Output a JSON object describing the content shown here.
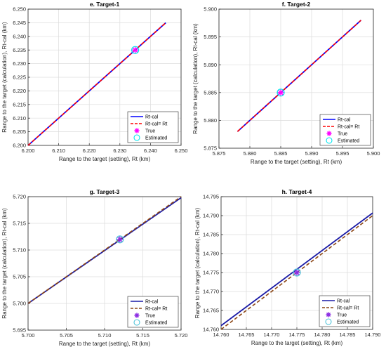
{
  "chart_data": [
    {
      "type": "line",
      "title": "e. Target-1",
      "xlabel": "Range to the target (setting), Rt (km)",
      "ylabel": "Range to the target (calculation), Rt-cal (km)",
      "xlim": [
        6.2,
        6.25
      ],
      "ylim": [
        6.2,
        6.25
      ],
      "xticks": [
        "6.200",
        "6.210",
        "6.220",
        "6.230",
        "6.240",
        "6.250"
      ],
      "yticks": [
        "6.200",
        "6.205",
        "6.210",
        "6.215",
        "6.220",
        "6.225",
        "6.230",
        "6.235",
        "6.240",
        "6.245",
        "6.250"
      ],
      "grid": true,
      "legend_position": "bottom-right",
      "series": [
        {
          "name": "Rt-cal",
          "style": "solid",
          "color": "#0000ff",
          "x": [
            6.2,
            6.245
          ],
          "y": [
            6.2,
            6.245
          ]
        },
        {
          "name": "Rt-cal= Rt",
          "style": "dashed",
          "color": "#ff0000",
          "x": [
            6.2,
            6.245
          ],
          "y": [
            6.2,
            6.245
          ]
        }
      ],
      "points": [
        {
          "name": "True",
          "marker": "asterisk",
          "color": "#ff00ff",
          "x": 6.235,
          "y": 6.235
        },
        {
          "name": "Estimated",
          "marker": "circle",
          "color": "#00e5ee",
          "x": 6.235,
          "y": 6.235
        }
      ]
    },
    {
      "type": "line",
      "title": "f. Target-2",
      "xlabel": "Range to the target (setting), Rt (km)",
      "ylabel": "Range to the target (calculation), Rt-cal (km)",
      "xlim": [
        5.875,
        5.9
      ],
      "ylim": [
        5.875,
        5.9
      ],
      "xticks": [
        "5.875",
        "5.880",
        "5.885",
        "5.890",
        "5.895",
        "5.900"
      ],
      "yticks": [
        "5.875",
        "5.880",
        "5.885",
        "5.890",
        "5.895",
        "5.900"
      ],
      "grid": true,
      "legend_position": "bottom-right",
      "series": [
        {
          "name": "Rt-cal",
          "style": "solid",
          "color": "#0000ff",
          "x": [
            5.878,
            5.898
          ],
          "y": [
            5.878,
            5.898
          ]
        },
        {
          "name": "Rt-cal= Rt",
          "style": "dashed",
          "color": "#ff0000",
          "x": [
            5.878,
            5.898
          ],
          "y": [
            5.878,
            5.898
          ]
        }
      ],
      "points": [
        {
          "name": "True",
          "marker": "asterisk",
          "color": "#ff00ff",
          "x": 5.885,
          "y": 5.885
        },
        {
          "name": "Estimated",
          "marker": "circle",
          "color": "#00e5ee",
          "x": 5.885,
          "y": 5.885
        }
      ]
    },
    {
      "type": "line",
      "title": "g. Target-3",
      "xlabel": "Range to the target (setting), Rt (km)",
      "ylabel": "Range to the target (calculation), Rt-cal (km)",
      "xlim": [
        5.7,
        5.72
      ],
      "ylim": [
        5.695,
        5.72
      ],
      "xticks": [
        "5.700",
        "5.705",
        "5.710",
        "5.715",
        "5.720"
      ],
      "yticks": [
        "5.695",
        "5.700",
        "5.705",
        "5.710",
        "5.715",
        "5.720"
      ],
      "grid": true,
      "legend_position": "bottom-right",
      "series": [
        {
          "name": "Rt-cal",
          "style": "solid",
          "color": "#1a1aa6",
          "x": [
            5.7,
            5.72
          ],
          "y": [
            5.7,
            5.7198
          ]
        },
        {
          "name": "Rt-cal= Rt",
          "style": "dashed",
          "color": "#8b4513",
          "x": [
            5.7,
            5.72
          ],
          "y": [
            5.7,
            5.72
          ]
        }
      ],
      "points": [
        {
          "name": "True",
          "marker": "asterisk",
          "color": "#8a2be2",
          "x": 5.712,
          "y": 5.712
        },
        {
          "name": "Estimated",
          "marker": "circle",
          "color": "#4fc3d9",
          "x": 5.712,
          "y": 5.712
        }
      ]
    },
    {
      "type": "line",
      "title": "h. Target-4",
      "xlabel": "Range to the target (setting), Rt (km)",
      "ylabel": "Range to the target (calculation), Rt-cal (km)",
      "xlim": [
        14.76,
        14.79
      ],
      "ylim": [
        14.76,
        14.795
      ],
      "xticks": [
        "14.760",
        "14.765",
        "14.770",
        "14.775",
        "14.780",
        "14.785",
        "14.790"
      ],
      "yticks": [
        "14.760",
        "14.765",
        "14.770",
        "14.775",
        "14.780",
        "14.785",
        "14.790",
        "14.795"
      ],
      "grid": true,
      "legend_position": "bottom-right",
      "series": [
        {
          "name": "Rt-cal",
          "style": "solid",
          "color": "#1a1aa6",
          "x": [
            14.76,
            14.79
          ],
          "y": [
            14.761,
            14.7907
          ]
        },
        {
          "name": "Rt-cal= Rt",
          "style": "dashed",
          "color": "#8b4513",
          "x": [
            14.76,
            14.79
          ],
          "y": [
            14.76,
            14.79
          ]
        }
      ],
      "points": [
        {
          "name": "True",
          "marker": "asterisk",
          "color": "#8a2be2",
          "x": 14.775,
          "y": 14.775
        },
        {
          "name": "Estimated",
          "marker": "circle",
          "color": "#4fc3d9",
          "x": 14.775,
          "y": 14.775
        }
      ]
    }
  ]
}
